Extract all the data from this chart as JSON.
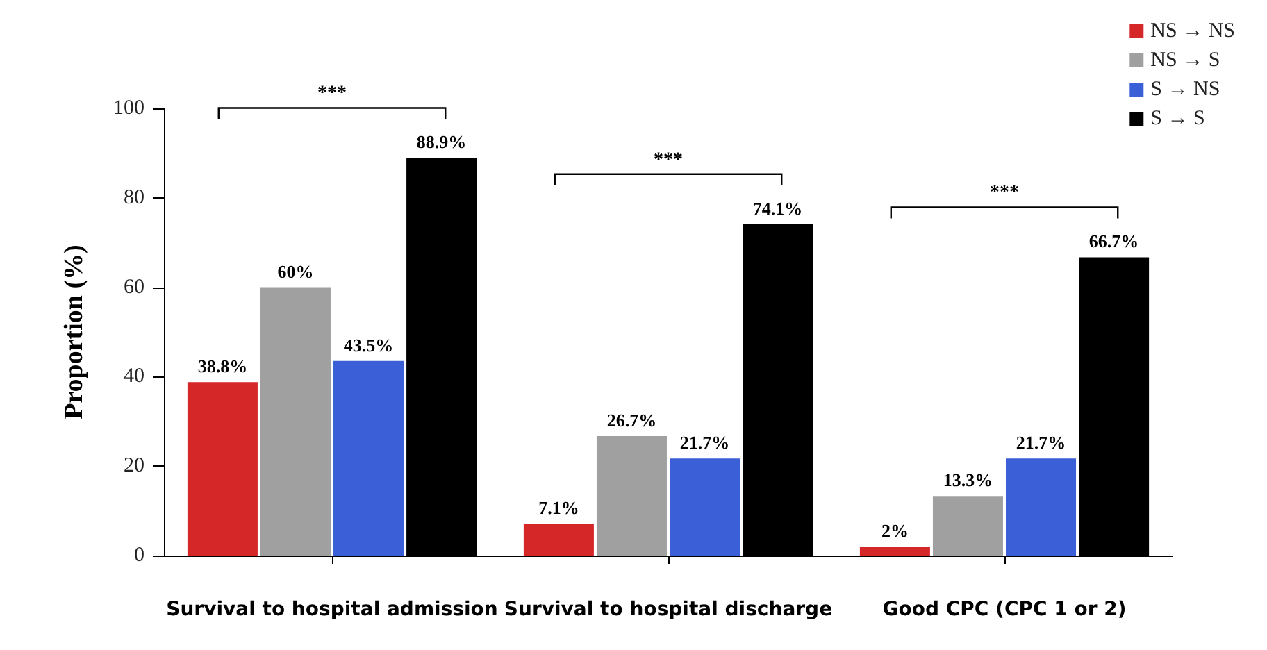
{
  "chart_data": {
    "type": "bar",
    "ylabel": "Proportion (%)",
    "categories": [
      "Survival to hospital admission",
      "Survival to hospital discharge",
      "Good CPC (CPC 1 or 2)"
    ],
    "series": [
      {
        "name": "NS → NS",
        "color": "#d62728",
        "values": [
          38.8,
          7.1,
          2
        ],
        "value_labels": [
          "38.8%",
          "7.1%",
          "2%"
        ]
      },
      {
        "name": "NS → S",
        "color": "#a0a0a0",
        "values": [
          60,
          26.7,
          13.3
        ],
        "value_labels": [
          "60%",
          "26.7%",
          "13.3%"
        ]
      },
      {
        "name": "S → NS",
        "color": "#3a5fd6",
        "values": [
          43.5,
          21.7,
          21.7
        ],
        "value_labels": [
          "43.5%",
          "21.7%",
          "21.7%"
        ]
      },
      {
        "name": "S → S",
        "color": "#000000",
        "values": [
          88.9,
          74.1,
          66.7
        ],
        "value_labels": [
          "88.9%",
          "74.1%",
          "66.7%"
        ]
      }
    ],
    "ylim": [
      0,
      100
    ],
    "yticks": [
      0,
      20,
      40,
      60,
      80,
      100
    ],
    "grid": false,
    "legend": "top right",
    "annotations": [
      "***",
      "***",
      "***"
    ]
  }
}
